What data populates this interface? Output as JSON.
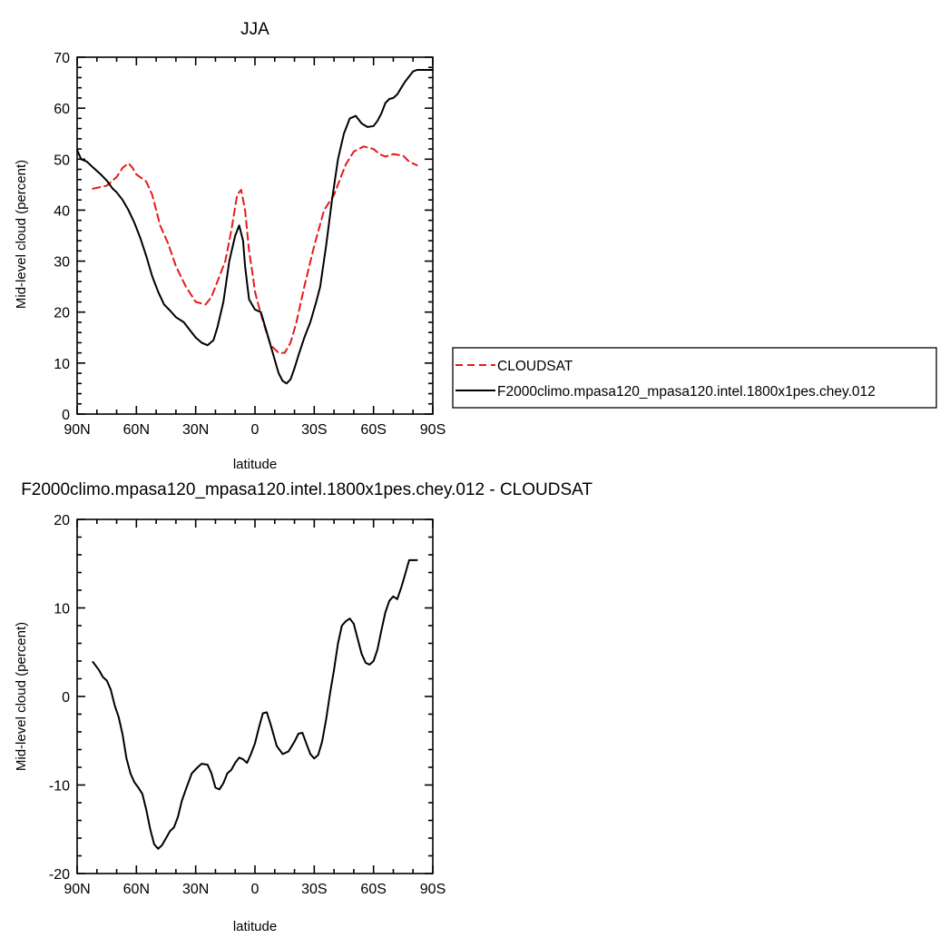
{
  "chart_data": [
    {
      "type": "line",
      "title": "JJA",
      "xlabel": "latitude",
      "ylabel": "Mid-level cloud (percent)",
      "xlim": [
        90,
        -90
      ],
      "ylim": [
        0,
        70
      ],
      "x_ticks": [
        90,
        60,
        30,
        0,
        -30,
        -60,
        -90
      ],
      "x_tick_labels": [
        "90N",
        "60N",
        "30N",
        "0",
        "30S",
        "60S",
        "90S"
      ],
      "y_ticks": [
        0,
        10,
        20,
        30,
        40,
        50,
        60,
        70
      ],
      "y_tick_labels": [
        "0",
        "10",
        "20",
        "30",
        "40",
        "50",
        "60",
        "70"
      ],
      "legend_position": "right",
      "series": [
        {
          "name": "CLOUDSAT",
          "color": "#e41a1c",
          "style": "dashed",
          "x": [
            82,
            75,
            70,
            67,
            64,
            62,
            60,
            55,
            52,
            48,
            44,
            40,
            35,
            30,
            25,
            22,
            18,
            15,
            12,
            9,
            7,
            5,
            3,
            1,
            0,
            -2,
            -5,
            -8,
            -12,
            -15,
            -18,
            -21,
            -25,
            -30,
            -35,
            -40,
            -43,
            -46,
            -50,
            -55,
            -60,
            -63,
            -66,
            -70,
            -75,
            -78,
            -82
          ],
          "y": [
            44.2,
            44.8,
            46.5,
            48.3,
            49.2,
            48.3,
            47,
            45.6,
            43,
            37,
            33.5,
            29,
            25,
            22,
            21.5,
            23,
            27,
            30,
            36,
            43,
            44,
            40,
            32,
            27,
            24,
            21,
            17,
            13.5,
            12,
            12,
            14,
            18,
            25,
            33,
            40,
            43,
            46,
            49,
            51.5,
            52.5,
            52,
            51,
            50.5,
            51,
            50.7,
            49.5,
            48.8
          ]
        },
        {
          "name": "F2000climo.mpasa120_mpasa120.intel.1800x1pes.chey.012",
          "color": "#000000",
          "style": "solid",
          "x": [
            90,
            88,
            85,
            82,
            78,
            75,
            72,
            70,
            67,
            64,
            61,
            58,
            55,
            52,
            49,
            46,
            43,
            40,
            36,
            33,
            30,
            27,
            24,
            21,
            19,
            16,
            13,
            10,
            8,
            6,
            5,
            3,
            0,
            -3,
            -6,
            -9,
            -12,
            -14,
            -16,
            -18,
            -20,
            -22,
            -25,
            -28,
            -31,
            -33,
            -36,
            -39,
            -42,
            -45,
            -48,
            -51,
            -54,
            -57,
            -60,
            -62,
            -64,
            -66,
            -68,
            -70,
            -72,
            -74,
            -76,
            -78,
            -80,
            -82,
            -84,
            -86,
            -88,
            -90
          ],
          "y": [
            51.8,
            50,
            49.5,
            48.4,
            47,
            45.8,
            44.2,
            43.5,
            42,
            40,
            37.5,
            34.5,
            31,
            27,
            24,
            21.5,
            20.3,
            19,
            18,
            16.5,
            15,
            14,
            13.5,
            14.5,
            17,
            22,
            30,
            35,
            37,
            34,
            29,
            22.5,
            20.5,
            20,
            16,
            12,
            8,
            6.5,
            6,
            6.8,
            9,
            11.5,
            15,
            18,
            22,
            25,
            33,
            42,
            50,
            55,
            58,
            58.5,
            57,
            56.3,
            56.5,
            57.5,
            59,
            61,
            61.8,
            62,
            62.7,
            64,
            65.2,
            66.2,
            67.2,
            67.5,
            67.5,
            67.5,
            67.5,
            67.5
          ]
        }
      ]
    },
    {
      "type": "line",
      "title": "F2000climo.mpasa120_mpasa120.intel.1800x1pes.chey.012 - CLOUDSAT",
      "xlabel": "latitude",
      "ylabel": "Mid-level cloud (percent)",
      "xlim": [
        90,
        -90
      ],
      "ylim": [
        -20,
        20
      ],
      "x_ticks": [
        90,
        60,
        30,
        0,
        -30,
        -60,
        -90
      ],
      "x_tick_labels": [
        "90N",
        "60N",
        "30N",
        "0",
        "30S",
        "60S",
        "90S"
      ],
      "y_ticks": [
        -20,
        -10,
        0,
        10,
        20
      ],
      "y_tick_labels": [
        "-20",
        "-10",
        "0",
        "10",
        "20"
      ],
      "series": [
        {
          "color": "#000000",
          "style": "solid",
          "x": [
            82,
            79,
            77,
            75,
            73,
            71,
            69,
            67,
            65,
            63,
            61,
            59,
            57,
            55,
            53,
            51,
            49,
            47,
            45,
            43,
            41,
            39,
            37,
            35,
            32,
            29,
            27,
            24,
            22,
            20,
            18,
            16,
            14,
            12,
            10,
            8,
            6,
            4,
            2,
            0,
            -2,
            -4,
            -6,
            -8,
            -11,
            -14,
            -17,
            -20,
            -22,
            -24,
            -26,
            -28,
            -30,
            -32,
            -34,
            -36,
            -38,
            -40,
            -42,
            -44,
            -46,
            -48,
            -50,
            -52,
            -54,
            -56,
            -58,
            -60,
            -62,
            -64,
            -66,
            -68,
            -70,
            -72,
            -74,
            -76,
            -78,
            -80,
            -82
          ],
          "y": [
            3.9,
            3,
            2.2,
            1.8,
            0.8,
            -1,
            -2.3,
            -4.3,
            -7,
            -8.7,
            -9.7,
            -10.3,
            -11,
            -12.8,
            -15,
            -16.7,
            -17.2,
            -16.8,
            -16,
            -15.2,
            -14.8,
            -13.6,
            -11.8,
            -10.5,
            -8.7,
            -8,
            -7.6,
            -7.7,
            -8.7,
            -10.3,
            -10.5,
            -9.8,
            -8.7,
            -8.3,
            -7.5,
            -6.9,
            -7.1,
            -7.5,
            -6.5,
            -5.3,
            -3.5,
            -1.9,
            -1.8,
            -3.2,
            -5.6,
            -6.5,
            -6.2,
            -5.1,
            -4.2,
            -4.1,
            -5.3,
            -6.5,
            -7,
            -6.6,
            -5.1,
            -2.6,
            0.4,
            3,
            6,
            8,
            8.5,
            8.8,
            8.2,
            6.5,
            4.8,
            3.8,
            3.6,
            4,
            5.3,
            7.5,
            9.5,
            10.8,
            11.3,
            11,
            12.3,
            13.8,
            15.4,
            15.4,
            15.4
          ]
        }
      ]
    }
  ]
}
